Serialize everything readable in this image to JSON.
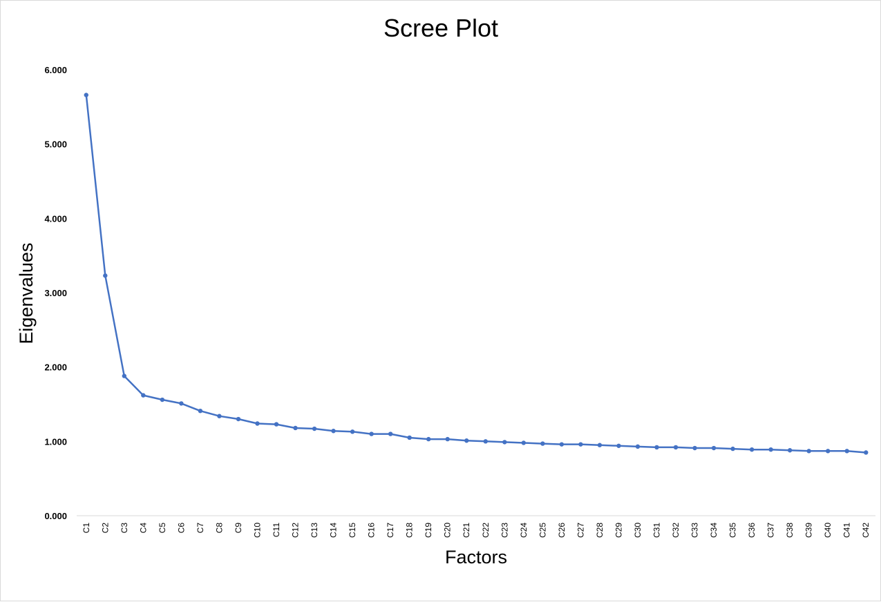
{
  "chart_data": {
    "type": "line",
    "title": "Scree Plot",
    "xlabel": "Factors",
    "ylabel": "Eigenvalues",
    "ylim": [
      0,
      6
    ],
    "yticks": [
      "0.000",
      "1.000",
      "2.000",
      "3.000",
      "4.000",
      "5.000",
      "6.000"
    ],
    "grid": false,
    "legend": "none",
    "color": "#4472c4",
    "categories": [
      "C1",
      "C2",
      "C3",
      "C4",
      "C5",
      "C6",
      "C7",
      "C8",
      "C9",
      "C10",
      "C11",
      "C12",
      "C13",
      "C14",
      "C15",
      "C16",
      "C17",
      "C18",
      "C19",
      "C20",
      "C21",
      "C22",
      "C23",
      "C24",
      "C25",
      "C26",
      "C27",
      "C28",
      "C29",
      "C30",
      "C31",
      "C32",
      "C33",
      "C34",
      "C35",
      "C36",
      "C37",
      "C38",
      "C39",
      "C40",
      "C41",
      "C42"
    ],
    "values": [
      5.66,
      3.23,
      1.88,
      1.62,
      1.56,
      1.51,
      1.41,
      1.34,
      1.3,
      1.24,
      1.23,
      1.18,
      1.17,
      1.14,
      1.13,
      1.1,
      1.1,
      1.05,
      1.03,
      1.03,
      1.01,
      1.0,
      0.99,
      0.98,
      0.97,
      0.96,
      0.96,
      0.95,
      0.94,
      0.93,
      0.92,
      0.92,
      0.91,
      0.91,
      0.9,
      0.89,
      0.89,
      0.88,
      0.87,
      0.87,
      0.87,
      0.85
    ]
  }
}
